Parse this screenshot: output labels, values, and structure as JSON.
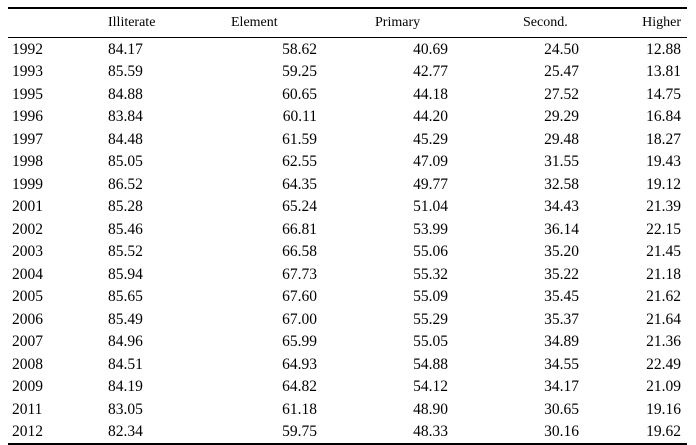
{
  "table": {
    "headers": [
      "",
      "Illiterate",
      "Element",
      "Primary",
      "Second.",
      "Higher"
    ],
    "rows": [
      [
        "1992",
        "84.17",
        "58.62",
        "40.69",
        "24.50",
        "12.88"
      ],
      [
        "1993",
        "85.59",
        "59.25",
        "42.77",
        "25.47",
        "13.81"
      ],
      [
        "1995",
        "84.88",
        "60.65",
        "44.18",
        "27.52",
        "14.75"
      ],
      [
        "1996",
        "83.84",
        "60.11",
        "44.20",
        "29.29",
        "16.84"
      ],
      [
        "1997",
        "84.48",
        "61.59",
        "45.29",
        "29.48",
        "18.27"
      ],
      [
        "1998",
        "85.05",
        "62.55",
        "47.09",
        "31.55",
        "19.43"
      ],
      [
        "1999",
        "86.52",
        "64.35",
        "49.77",
        "32.58",
        "19.12"
      ],
      [
        "2001",
        "85.28",
        "65.24",
        "51.04",
        "34.43",
        "21.39"
      ],
      [
        "2002",
        "85.46",
        "66.81",
        "53.99",
        "36.14",
        "22.15"
      ],
      [
        "2003",
        "85.52",
        "66.58",
        "55.06",
        "35.20",
        "21.45"
      ],
      [
        "2004",
        "85.94",
        "67.73",
        "55.32",
        "35.22",
        "21.18"
      ],
      [
        "2005",
        "85.65",
        "67.60",
        "55.09",
        "35.45",
        "21.62"
      ],
      [
        "2006",
        "85.49",
        "67.00",
        "55.29",
        "35.37",
        "21.64"
      ],
      [
        "2007",
        "84.96",
        "65.99",
        "55.05",
        "34.89",
        "21.36"
      ],
      [
        "2008",
        "84.51",
        "64.93",
        "54.88",
        "34.55",
        "22.49"
      ],
      [
        "2009",
        "84.19",
        "64.82",
        "54.12",
        "34.17",
        "21.09"
      ],
      [
        "2011",
        "83.05",
        "61.18",
        "48.90",
        "30.65",
        "19.16"
      ],
      [
        "2012",
        "82.34",
        "59.75",
        "48.33",
        "30.16",
        "19.62"
      ]
    ]
  }
}
